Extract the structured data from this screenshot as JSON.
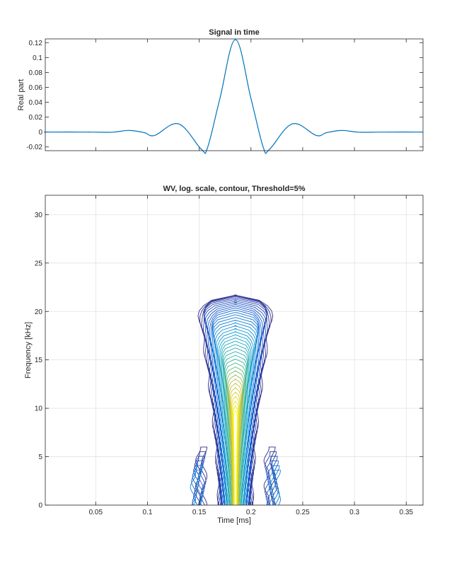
{
  "chart_data": [
    {
      "type": "line",
      "title": "Signal in time",
      "xlabel": "",
      "ylabel": "Real part",
      "xlim": [
        0.00125,
        0.36625
      ],
      "ylim": [
        -0.025,
        0.125
      ],
      "yticks": [
        0.12,
        0.1,
        0.08,
        0.06,
        0.04,
        0.02,
        0,
        -0.02
      ],
      "ytick_labels": [
        "0.12",
        "0.1",
        "0.08",
        "0.06",
        "0.04",
        "0.02",
        "0",
        "-0.02"
      ],
      "grid": false,
      "line_color": "#0072bd",
      "series": [
        {
          "x": [
            0.0,
            0.04,
            0.062,
            0.07,
            0.083,
            0.097,
            0.107,
            0.13,
            0.152,
            0.158,
            0.17,
            0.185,
            0.2,
            0.212,
            0.218,
            0.24,
            0.263,
            0.273,
            0.287,
            0.3,
            0.308,
            0.33,
            0.366
          ],
          "y": [
            0.0,
            0.0,
            -0.0003,
            0.0003,
            0.0022,
            -0.0008,
            -0.0045,
            0.011,
            -0.023,
            -0.021,
            0.045,
            0.124,
            0.045,
            -0.021,
            -0.023,
            0.011,
            -0.0045,
            -0.0008,
            0.0022,
            0.0003,
            -0.0003,
            0.0,
            0.0
          ]
        }
      ]
    },
    {
      "type": "contour",
      "title": "WV, log. scale, contour, Threshold=5%",
      "xlabel": "Time [ms]",
      "ylabel": "Frequency [kHz]",
      "xlim": [
        0.00125,
        0.36625
      ],
      "ylim": [
        0,
        32
      ],
      "xticks": [
        0.05,
        0.1,
        0.15,
        0.2,
        0.25,
        0.3,
        0.35
      ],
      "xtick_labels": [
        "0.05",
        "0.1",
        "0.15",
        "0.2",
        "0.25",
        "0.3",
        "0.35"
      ],
      "yticks": [
        0,
        5,
        10,
        15,
        20,
        25,
        30
      ],
      "ytick_labels": [
        "0",
        "5",
        "10",
        "15",
        "20",
        "25",
        "30"
      ],
      "grid": true,
      "colormap": "parula",
      "center_time": 0.185,
      "outer_halfwidth": 0.036,
      "inner_halfwidth": 0.002,
      "top_frequency": 21.7,
      "num_levels": 40,
      "side_lobes": [
        {
          "x_center": 0.152,
          "top_frequency": 6.0
        },
        {
          "x_center": 0.218,
          "top_frequency": 6.0
        }
      ],
      "color_low": "#352a87",
      "color_mid": "#0f9ed1",
      "color_high": "#f9fb0e"
    }
  ]
}
